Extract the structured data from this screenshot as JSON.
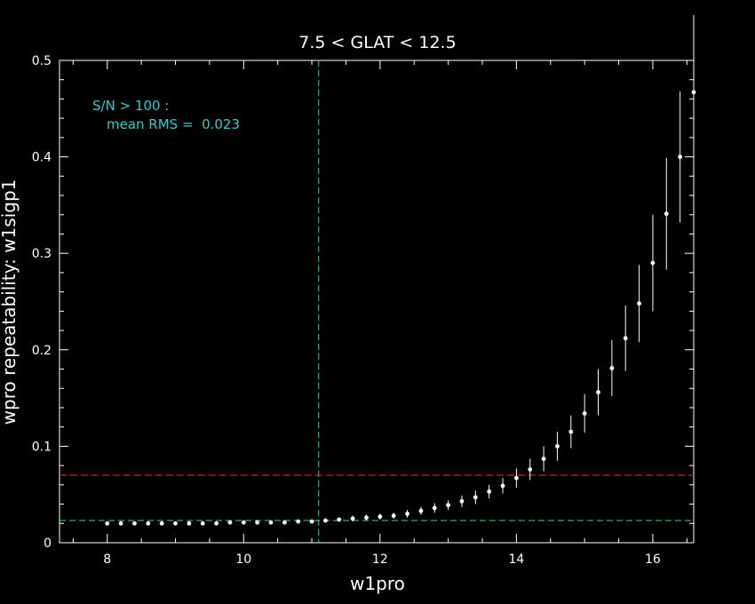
{
  "chart_data": {
    "type": "scatter",
    "title": "7.5 < GLAT < 12.5",
    "xlabel": "w1pro",
    "ylabel": "wpro repeatability: w1sigp1",
    "xlim": [
      7.3,
      16.6
    ],
    "ylim": [
      0,
      0.5
    ],
    "x_ticks": [
      8,
      10,
      12,
      14,
      16
    ],
    "y_ticks": [
      0,
      0.1,
      0.2,
      0.3,
      0.4,
      0.5
    ],
    "grid": false,
    "annotation_lines": [
      "S/N > 100 :",
      "mean RMS =  0.023"
    ],
    "reference_lines": {
      "vertical_x": 11.1,
      "horizontal_cyan_y": 0.023,
      "horizontal_red_y": 0.07
    },
    "colors": {
      "background": "#000000",
      "foreground": "#ffffff",
      "cyan": "#33cccc",
      "red": "#cc2222"
    },
    "series": [
      {
        "x": [
          8.0,
          8.2,
          8.4,
          8.6,
          8.8,
          9.0,
          9.2,
          9.4,
          9.6,
          9.8,
          10.0,
          10.2,
          10.4,
          10.6,
          10.8,
          11.0,
          11.2,
          11.4,
          11.6,
          11.8,
          12.0,
          12.2,
          12.4,
          12.6,
          12.8,
          13.0,
          13.2,
          13.4,
          13.6,
          13.8,
          14.0,
          14.2,
          14.4,
          14.6,
          14.8,
          15.0,
          15.2,
          15.4,
          15.6,
          15.8,
          16.0,
          16.2,
          16.4,
          16.6
        ],
        "y": [
          0.02,
          0.02,
          0.02,
          0.02,
          0.02,
          0.02,
          0.02,
          0.02,
          0.02,
          0.021,
          0.021,
          0.021,
          0.021,
          0.021,
          0.022,
          0.022,
          0.023,
          0.024,
          0.025,
          0.026,
          0.027,
          0.028,
          0.03,
          0.033,
          0.036,
          0.039,
          0.043,
          0.047,
          0.053,
          0.059,
          0.067,
          0.076,
          0.087,
          0.1,
          0.115,
          0.134,
          0.156,
          0.181,
          0.212,
          0.248,
          0.29,
          0.341,
          0.4,
          0.467
        ],
        "err": [
          0.002,
          0.002,
          0.002,
          0.002,
          0.002,
          0.002,
          0.002,
          0.002,
          0.002,
          0.002,
          0.002,
          0.002,
          0.002,
          0.002,
          0.002,
          0.002,
          0.002,
          0.002,
          0.003,
          0.003,
          0.003,
          0.003,
          0.004,
          0.004,
          0.005,
          0.005,
          0.006,
          0.007,
          0.007,
          0.008,
          0.01,
          0.011,
          0.013,
          0.015,
          0.017,
          0.02,
          0.024,
          0.029,
          0.034,
          0.04,
          0.05,
          0.058,
          0.068,
          0.08
        ]
      }
    ]
  }
}
